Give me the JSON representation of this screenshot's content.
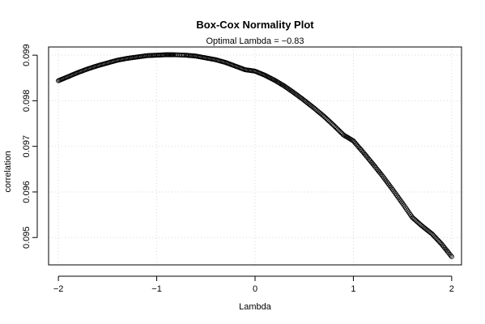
{
  "chart_data": {
    "type": "scatter",
    "title": "Box-Cox Normality Plot",
    "subtitle": "Optimal Lambda = −0.83",
    "xlabel": "Lambda",
    "ylabel": "correlation",
    "xlim": [
      -2.1,
      2.1
    ],
    "ylim": [
      0.0944,
      0.09918
    ],
    "xticks": [
      -2,
      -1,
      0,
      1,
      2
    ],
    "xtick_labels": [
      "−2",
      "−1",
      "0",
      "1",
      "2"
    ],
    "yticks": [
      0.095,
      0.096,
      0.097,
      0.098,
      0.099
    ],
    "ytick_labels": [
      "0.095",
      "0.096",
      "0.097",
      "0.098",
      "0.099"
    ],
    "grid": true,
    "marker": "open-circle",
    "point_color": "#000000",
    "grid_color": "#d9d9d9",
    "points": [
      [
        -2.0,
        0.09844
      ],
      [
        -1.9,
        0.09853
      ],
      [
        -1.8,
        0.09862
      ],
      [
        -1.7,
        0.0987
      ],
      [
        -1.6,
        0.09877
      ],
      [
        -1.5,
        0.09883
      ],
      [
        -1.4,
        0.09889
      ],
      [
        -1.3,
        0.09893
      ],
      [
        -1.2,
        0.09896
      ],
      [
        -1.1,
        0.09899
      ],
      [
        -1.0,
        0.099
      ],
      [
        -0.9,
        0.09901
      ],
      [
        -0.83,
        0.09901
      ],
      [
        -0.7,
        0.099
      ],
      [
        -0.6,
        0.09898
      ],
      [
        -0.5,
        0.09894
      ],
      [
        -0.4,
        0.0989
      ],
      [
        -0.3,
        0.09884
      ],
      [
        -0.2,
        0.09876
      ],
      [
        -0.1,
        0.09868
      ],
      [
        0.0,
        0.09865
      ],
      [
        0.1,
        0.09856
      ],
      [
        0.2,
        0.09845
      ],
      [
        0.3,
        0.09832
      ],
      [
        0.4,
        0.09817
      ],
      [
        0.5,
        0.09801
      ],
      [
        0.6,
        0.09784
      ],
      [
        0.7,
        0.09766
      ],
      [
        0.8,
        0.09746
      ],
      [
        0.9,
        0.09725
      ],
      [
        1.0,
        0.09712
      ],
      [
        1.1,
        0.09687
      ],
      [
        1.2,
        0.09661
      ],
      [
        1.3,
        0.09634
      ],
      [
        1.4,
        0.09605
      ],
      [
        1.5,
        0.09575
      ],
      [
        1.6,
        0.09544
      ],
      [
        1.7,
        0.09525
      ],
      [
        1.8,
        0.09508
      ],
      [
        1.9,
        0.09485
      ],
      [
        2.0,
        0.09458
      ]
    ]
  }
}
